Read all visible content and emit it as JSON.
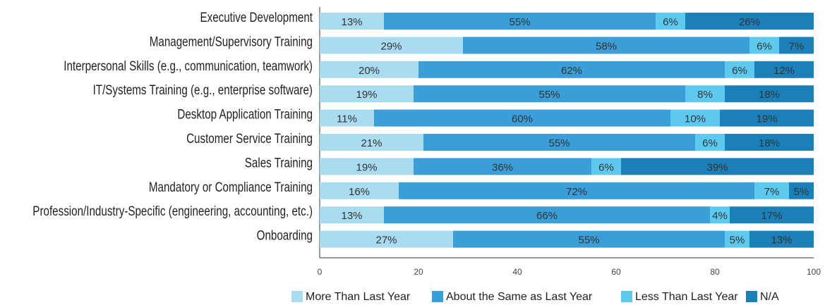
{
  "chart_data": {
    "type": "stacked_barh",
    "categories": [
      "Executive Development",
      "Management/Supervisory Training",
      "Interpersonal Skills (e.g., communication, teamwork)",
      "IT/Systems Training (e.g., enterprise software)",
      "Desktop Application Training",
      "Customer Service Training",
      "Sales Training",
      "Mandatory or Compliance Training",
      "Profession/Industry-Specific (engineering, accounting, etc.)",
      "Onboarding"
    ],
    "series": [
      {
        "name": "More Than Last Year",
        "color": "#a9dbf1",
        "values": [
          13,
          29,
          20,
          19,
          11,
          21,
          19,
          16,
          13,
          27
        ],
        "value_labels": [
          "13%",
          "29%",
          "20%",
          "19%",
          "11%",
          "21%",
          "19%",
          "16%",
          "13%",
          "27%"
        ]
      },
      {
        "name": "About the Same as Last Year",
        "color": "#3a9ed8",
        "values": [
          55,
          58,
          62,
          55,
          60,
          55,
          36,
          72,
          66,
          55
        ],
        "value_labels": [
          "55%",
          "58%",
          "62%",
          "55%",
          "60%",
          "55%",
          "36%",
          "72%",
          "66%",
          "55%"
        ]
      },
      {
        "name": "Less Than Last Year",
        "color": "#5ec9ef",
        "values": [
          6,
          6,
          6,
          8,
          10,
          6,
          6,
          7,
          4,
          5
        ],
        "value_labels": [
          "6%",
          "6%",
          "6%",
          "8%",
          "10%",
          "6%",
          "6%",
          "7%",
          "4%",
          "5%"
        ]
      },
      {
        "name": "N/A",
        "color": "#1b7fb9",
        "values": [
          26,
          7,
          12,
          18,
          19,
          18,
          39,
          5,
          17,
          13
        ],
        "value_labels": [
          "26%",
          "7%",
          "12%",
          "18%",
          "19%",
          "18%",
          "39%",
          "5%",
          "17%",
          "13%"
        ]
      }
    ],
    "xlim": [
      0,
      100
    ],
    "xticks": [
      0,
      20,
      40,
      60,
      80,
      100
    ],
    "grid": false
  }
}
